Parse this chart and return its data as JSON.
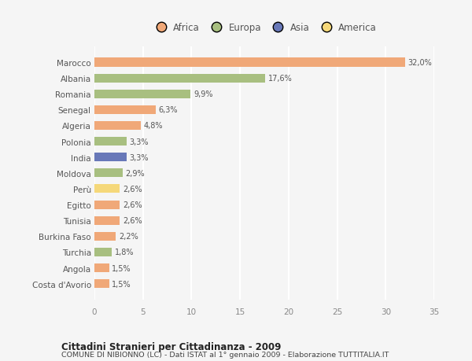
{
  "countries": [
    "Costa d'Avorio",
    "Angola",
    "Turchia",
    "Burkina Faso",
    "Tunisia",
    "Egitto",
    "Perù",
    "Moldova",
    "India",
    "Polonia",
    "Algeria",
    "Senegal",
    "Romania",
    "Albania",
    "Marocco"
  ],
  "values": [
    1.5,
    1.5,
    1.8,
    2.2,
    2.6,
    2.6,
    2.6,
    2.9,
    3.3,
    3.3,
    4.8,
    6.3,
    9.9,
    17.6,
    32.0
  ],
  "colors": [
    "#f0a878",
    "#f0a878",
    "#a8bf80",
    "#f0a878",
    "#f0a878",
    "#f0a878",
    "#f5d87a",
    "#a8bf80",
    "#6878b8",
    "#a8bf80",
    "#f0a878",
    "#f0a878",
    "#a8bf80",
    "#a8bf80",
    "#f0a878"
  ],
  "labels": [
    "1,5%",
    "1,5%",
    "1,8%",
    "2,2%",
    "2,6%",
    "2,6%",
    "2,6%",
    "2,9%",
    "3,3%",
    "3,3%",
    "4,8%",
    "6,3%",
    "9,9%",
    "17,6%",
    "32,0%"
  ],
  "legend": [
    {
      "label": "Africa",
      "color": "#f0a878"
    },
    {
      "label": "Europa",
      "color": "#a8bf80"
    },
    {
      "label": "Asia",
      "color": "#6878b8"
    },
    {
      "label": "America",
      "color": "#f5d87a"
    }
  ],
  "title1": "Cittadini Stranieri per Cittadinanza - 2009",
  "title2": "COMUNE DI NIBIONNO (LC) - Dati ISTAT al 1° gennaio 2009 - Elaborazione TUTTITALIA.IT",
  "xlim": [
    0,
    35
  ],
  "xticks": [
    0,
    5,
    10,
    15,
    20,
    25,
    30,
    35
  ],
  "background_color": "#f5f5f5",
  "bar_height": 0.55,
  "grid_color": "#ffffff",
  "label_color": "#555555",
  "tick_color": "#888888"
}
